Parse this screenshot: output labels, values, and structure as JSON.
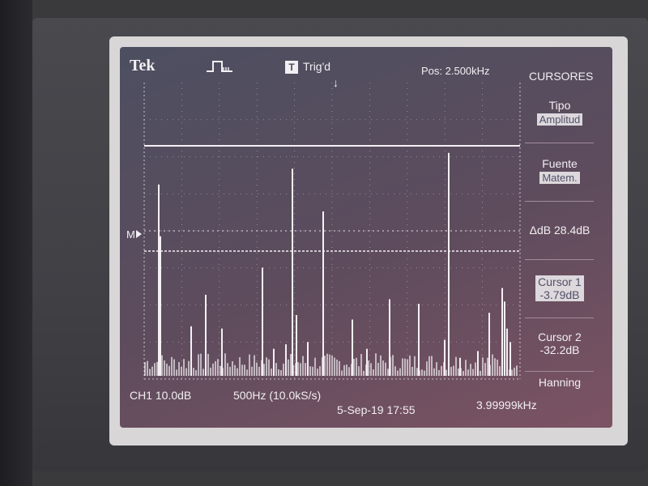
{
  "header": {
    "brand": "Tek",
    "trigger_icon_text": "T",
    "trigger_status": "Trig'd",
    "trigger_arrow": "↓",
    "position": "Pos: 2.500kHz",
    "menu_title": "CURSORES"
  },
  "marker": {
    "label": "M"
  },
  "menu": {
    "tipo_label": "Tipo",
    "tipo_value": "Amplitud",
    "fuente_label": "Fuente",
    "fuente_value": "Matem.",
    "delta": "ΔdB 28.4dB",
    "cursor1_label": "Cursor 1",
    "cursor1_value": "-3.79dB",
    "cursor2_label": "Cursor 2",
    "cursor2_value": "-32.2dB",
    "window_label": "Hanning"
  },
  "status": {
    "channel": "CH1 10.0dB",
    "span": "500Hz (10.0kS/s)",
    "date": "5-Sep-19 17:55",
    "frequency": "3.99999kHz"
  },
  "colors": {
    "trace": "#f4f0f4",
    "grid": "#c8c0cc"
  },
  "spectrum": {
    "cursor1_db": -3.79,
    "cursor2_db": -32.2,
    "peaks": [
      {
        "idx": 0,
        "level": 0.62
      },
      {
        "idx": 1,
        "level": 0.85
      },
      {
        "idx": 2,
        "level": 0.22
      },
      {
        "idx": 3,
        "level": 0.36
      },
      {
        "idx": 4,
        "level": 0.21
      },
      {
        "idx": 5,
        "level": 0.48
      },
      {
        "idx": 6,
        "level": 0.12
      },
      {
        "idx": 7,
        "level": 0.14
      },
      {
        "idx": 8,
        "level": 0.27
      },
      {
        "idx": 9,
        "level": 0.15
      },
      {
        "idx": 10,
        "level": 0.92
      },
      {
        "idx": 11,
        "level": 0.73
      },
      {
        "idx": 12,
        "level": 0.25
      },
      {
        "idx": 13,
        "level": 0.12
      },
      {
        "idx": 14,
        "level": 0.34
      },
      {
        "idx": 15,
        "level": 0.32
      },
      {
        "idx": 16,
        "level": 0.16
      },
      {
        "idx": 17,
        "level": 0.08
      },
      {
        "idx": 18,
        "level": 0.11
      },
      {
        "idx": 19,
        "level": 0.28
      },
      {
        "idx": 20,
        "level": 0.39
      },
      {
        "idx": 21,
        "level": 0.99
      },
      {
        "idx": 22,
        "level": 0.33
      },
      {
        "idx": 23,
        "level": 0.15
      },
      {
        "idx": 24,
        "level": 0.21
      }
    ]
  }
}
